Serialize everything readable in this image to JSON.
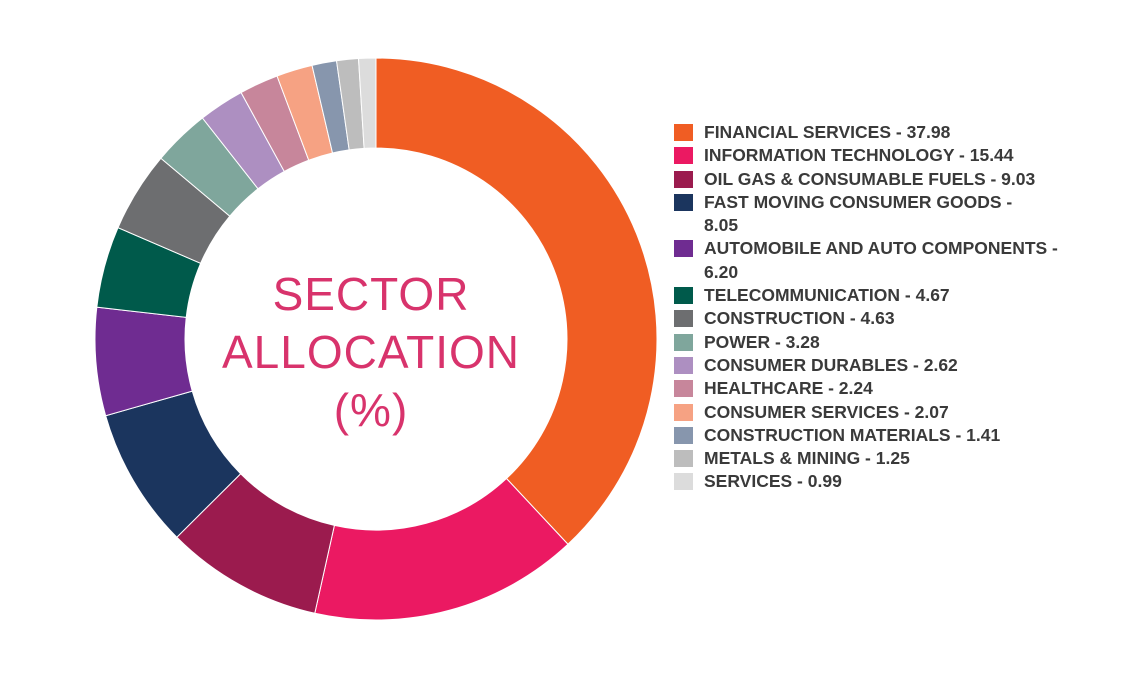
{
  "chart_data": {
    "type": "pie",
    "title_lines": [
      "SECTOR",
      "ALLOCATION",
      "(%)"
    ],
    "slices": [
      {
        "label": "FINANCIAL SERVICES - 37.98",
        "value": 37.98,
        "color": "#f05d23"
      },
      {
        "label": "INFORMATION TECHNOLOGY - 15.44",
        "value": 15.44,
        "color": "#eb1962"
      },
      {
        "label": "OIL GAS & CONSUMABLE FUELS - 9.03",
        "value": 9.03,
        "color": "#9b1b4e"
      },
      {
        "label": "FAST MOVING CONSUMER GOODS - 8.05",
        "value": 8.05,
        "color": "#1b355e"
      },
      {
        "label": "AUTOMOBILE AND AUTO COMPONENTS - 6.20",
        "value": 6.2,
        "color": "#6f2c91"
      },
      {
        "label": "TELECOMMUNICATION - 4.67",
        "value": 4.67,
        "color": "#005a4b"
      },
      {
        "label": "CONSTRUCTION - 4.63",
        "value": 4.63,
        "color": "#6d6e70"
      },
      {
        "label": "POWER - 3.28",
        "value": 3.28,
        "color": "#7fa69c"
      },
      {
        "label": "CONSUMER DURABLES - 2.62",
        "value": 2.62,
        "color": "#ad8fc1"
      },
      {
        "label": "HEALTHCARE - 2.24",
        "value": 2.24,
        "color": "#c7869b"
      },
      {
        "label": "CONSUMER SERVICES - 2.07",
        "value": 2.07,
        "color": "#f6a283"
      },
      {
        "label": "CONSTRUCTION MATERIALS - 1.41",
        "value": 1.41,
        "color": "#8796ad"
      },
      {
        "label": "METALS & MINING - 1.25",
        "value": 1.25,
        "color": "#bdbdbd"
      },
      {
        "label": "SERVICES - 0.99",
        "value": 0.99,
        "color": "#dcdcdc"
      }
    ],
    "legend_position": "right"
  }
}
